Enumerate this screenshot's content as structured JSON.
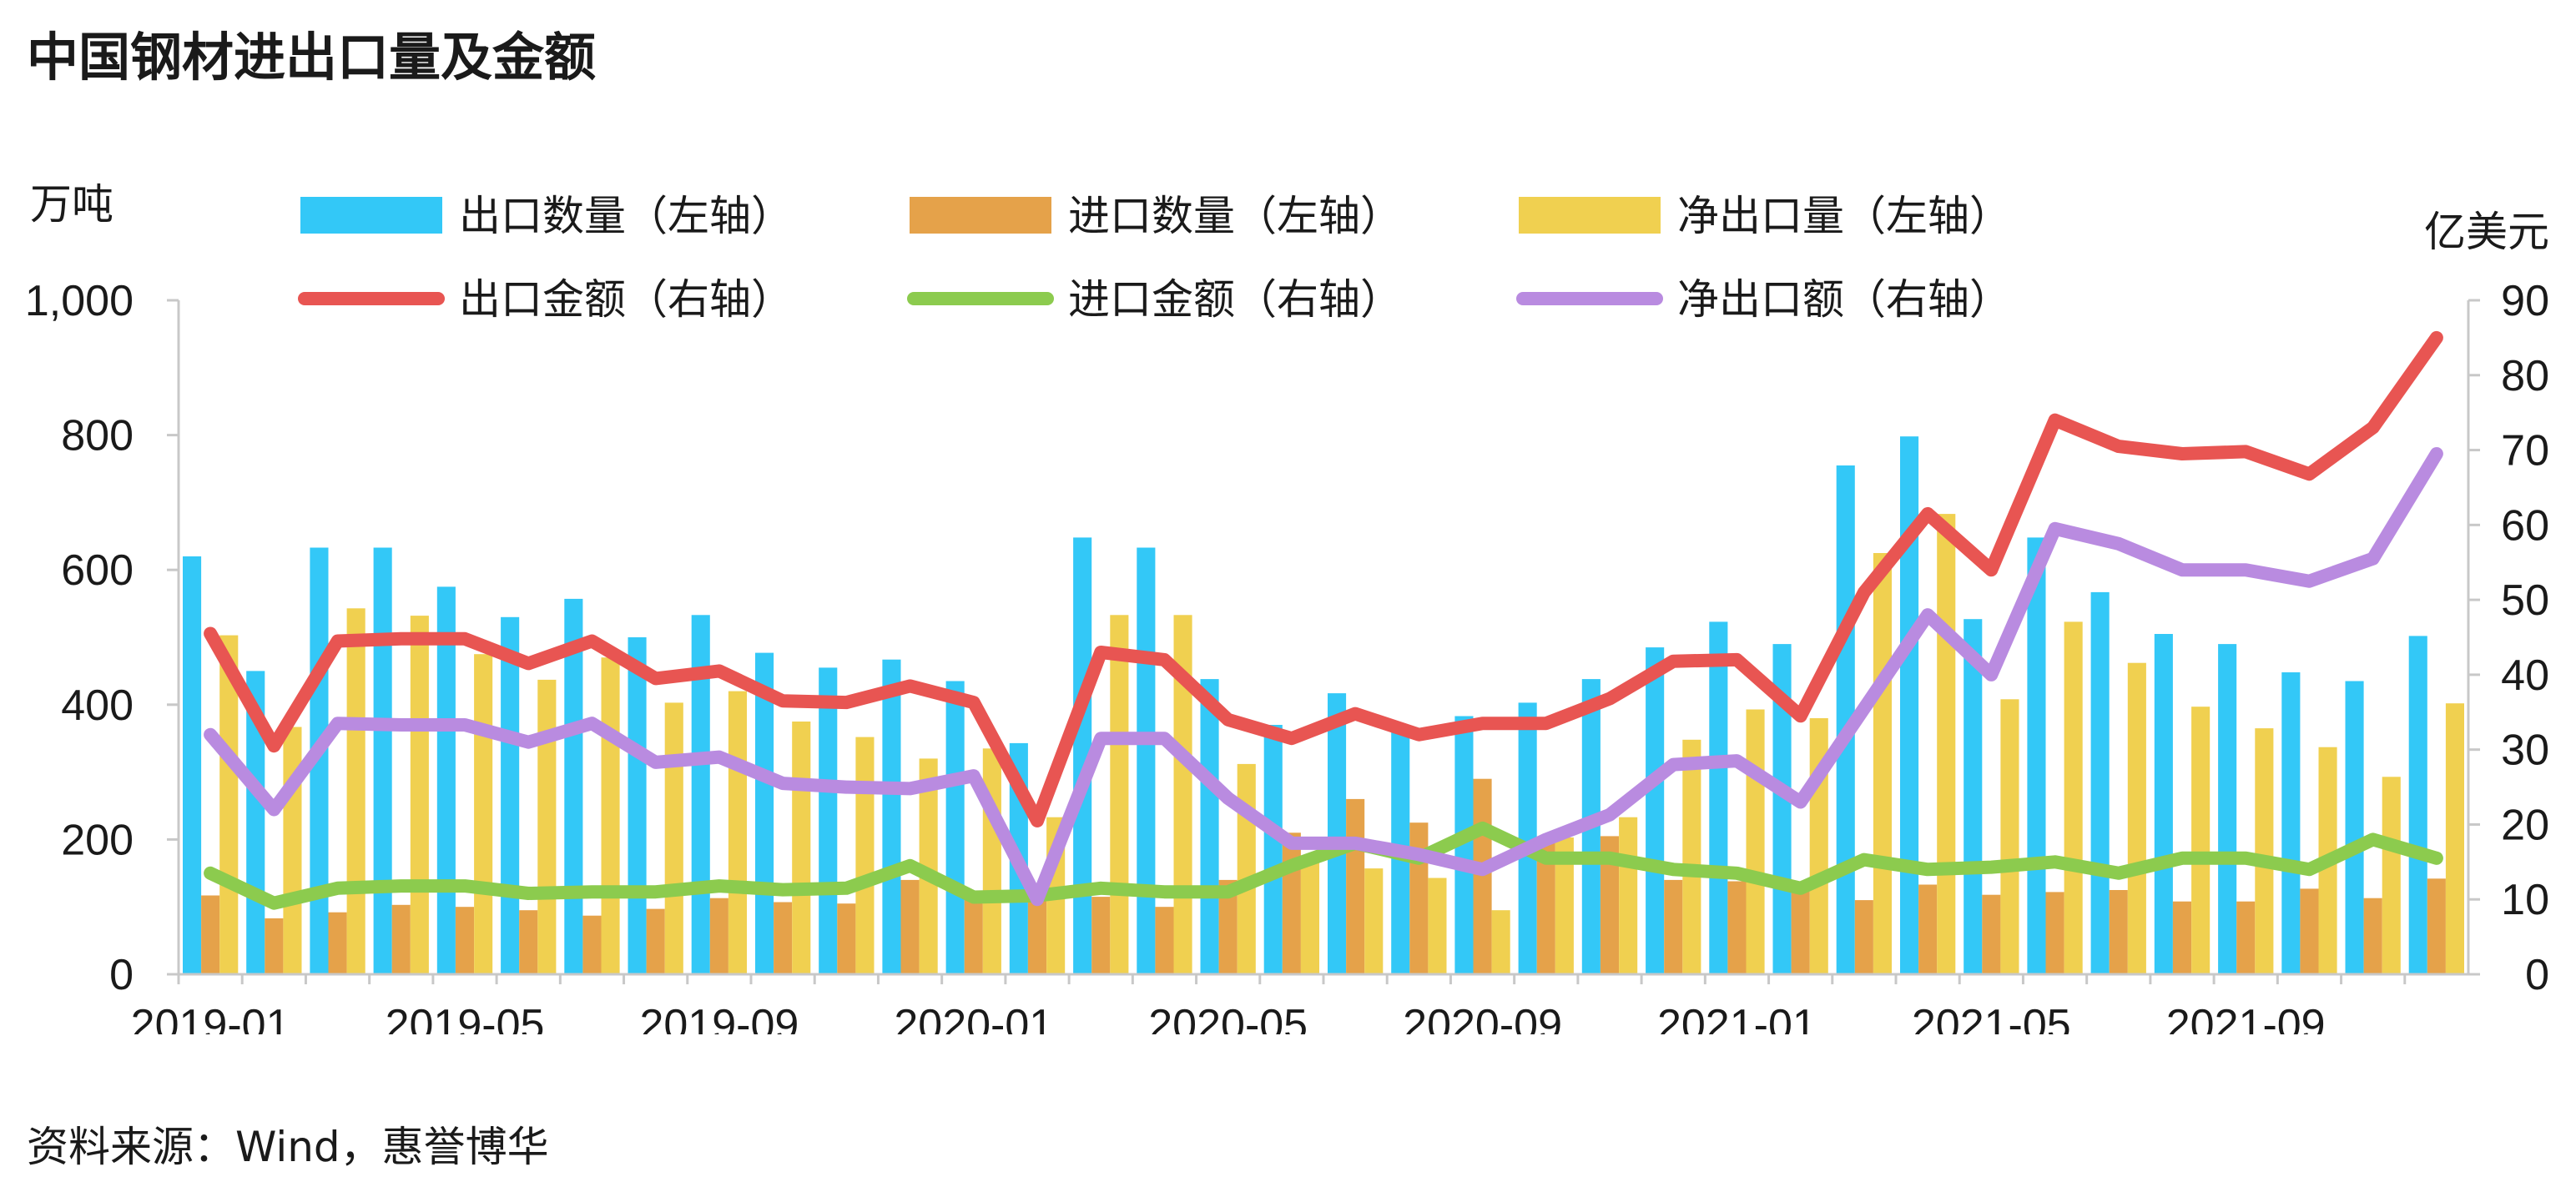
{
  "title": "中国钢材进出口量及金额",
  "source": "资料来源：Wind，惠誉博华",
  "colors": {
    "export_qty": "#33C8F7",
    "import_qty": "#E5A24A",
    "net_qty": "#F0D050",
    "export_amt": "#E85552",
    "import_amt": "#8CCB4E",
    "net_amt": "#B98BE0",
    "axis": "#c8c8c8"
  },
  "chart_data": {
    "type": "bar",
    "title": "中国钢材进出口量及金额",
    "left_axis": {
      "unit": "万吨",
      "range": [
        0,
        1000
      ],
      "ticks": [
        "0",
        "200",
        "400",
        "600",
        "800",
        "1,000"
      ]
    },
    "right_axis": {
      "unit": "亿美元",
      "range": [
        0,
        90
      ],
      "ticks": [
        "0",
        "10",
        "20",
        "30",
        "40",
        "50",
        "60",
        "70",
        "80",
        "90"
      ]
    },
    "x_tick_labels": [
      "2019-01",
      "2019-05",
      "2019-09",
      "2020-01",
      "2020-05",
      "2020-09",
      "2021-01",
      "2021-05",
      "2021-09"
    ],
    "categories": [
      "2019-01",
      "2019-02",
      "2019-03",
      "2019-04",
      "2019-05",
      "2019-06",
      "2019-07",
      "2019-08",
      "2019-09",
      "2019-10",
      "2019-11",
      "2019-12",
      "2020-01",
      "2020-02",
      "2020-03",
      "2020-04",
      "2020-05",
      "2020-06",
      "2020-07",
      "2020-08",
      "2020-09",
      "2020-10",
      "2020-11",
      "2020-12",
      "2021-01",
      "2021-02",
      "2021-03",
      "2021-04",
      "2021-05",
      "2021-06",
      "2021-07",
      "2021-08",
      "2021-09",
      "2021-10",
      "2021-11",
      "2021-12"
    ],
    "bar_series": [
      {
        "name": "出口数量（左轴）",
        "axis": "left",
        "values": [
          620,
          450,
          633,
          633,
          575,
          530,
          557,
          500,
          533,
          477,
          455,
          467,
          435,
          343,
          648,
          633,
          438,
          370,
          417,
          365,
          383,
          403,
          438,
          485,
          523,
          490,
          755,
          798,
          527,
          648,
          567,
          505,
          490,
          448,
          435,
          502
        ]
      },
      {
        "name": "进口数量（左轴）",
        "axis": "left",
        "values": [
          117,
          83,
          92,
          103,
          100,
          95,
          87,
          97,
          113,
          107,
          105,
          140,
          120,
          110,
          115,
          100,
          140,
          210,
          260,
          225,
          290,
          200,
          205,
          140,
          138,
          130,
          110,
          133,
          118,
          122,
          125,
          108,
          108,
          127,
          113,
          142
        ]
      },
      {
        "name": "净出口量（左轴）",
        "axis": "left",
        "values": [
          503,
          367,
          543,
          532,
          475,
          437,
          470,
          403,
          420,
          375,
          352,
          320,
          335,
          233,
          533,
          533,
          312,
          173,
          157,
          143,
          95,
          203,
          233,
          348,
          393,
          380,
          625,
          683,
          408,
          523,
          462,
          397,
          365,
          337,
          293,
          402
        ]
      }
    ],
    "line_series": [
      {
        "name": "出口金额（右轴）",
        "axis": "right",
        "values": [
          45.5,
          30.5,
          44.5,
          44.8,
          44.8,
          41.5,
          44.5,
          39.5,
          40.5,
          36.5,
          36.3,
          38.5,
          36.3,
          20.5,
          43.0,
          42.0,
          34.0,
          31.5,
          34.8,
          32.0,
          33.5,
          33.5,
          36.8,
          41.8,
          42.0,
          34.5,
          51.0,
          61.5,
          54.0,
          74.0,
          70.5,
          69.5,
          69.8,
          66.8,
          73.0,
          85.0
        ]
      },
      {
        "name": "进口金额（右轴）",
        "axis": "right",
        "values": [
          13.5,
          9.5,
          11.5,
          11.8,
          11.8,
          10.8,
          11.0,
          11.0,
          11.8,
          11.3,
          11.5,
          14.5,
          10.3,
          10.5,
          11.5,
          11.0,
          11.0,
          14.5,
          17.5,
          15.5,
          19.5,
          15.5,
          15.5,
          14.0,
          13.5,
          11.5,
          15.3,
          14.0,
          14.3,
          15.0,
          13.5,
          15.5,
          15.5,
          14.0,
          18.0,
          15.5
        ]
      },
      {
        "name": "净出口额（右轴）",
        "axis": "right",
        "values": [
          32.0,
          22.0,
          33.5,
          33.3,
          33.3,
          31.0,
          33.5,
          28.3,
          29.0,
          25.5,
          25.0,
          24.8,
          26.5,
          10.0,
          31.5,
          31.5,
          23.5,
          17.5,
          17.5,
          16.0,
          14.0,
          18.0,
          21.3,
          28.0,
          28.5,
          23.0,
          35.5,
          48.0,
          40.0,
          59.5,
          57.5,
          54.0,
          54.0,
          52.5,
          55.5,
          69.5
        ]
      }
    ],
    "legend": [
      "出口数量（左轴）",
      "进口数量（左轴）",
      "净出口量（左轴）",
      "出口金额（右轴）",
      "进口金额（右轴）",
      "净出口额（右轴）"
    ],
    "legend_position": "top",
    "grid": false
  }
}
